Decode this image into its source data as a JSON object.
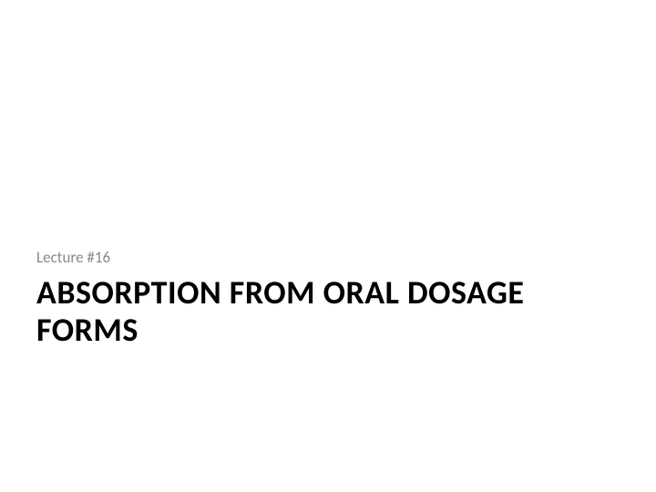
{
  "slide": {
    "subtitle": "Lecture #16",
    "title": "ABSORPTION FROM ORAL DOSAGE FORMS",
    "background_color": "#ffffff",
    "subtitle_color": "#888888",
    "title_color": "#000000",
    "subtitle_fontsize": 17,
    "title_fontsize": 36,
    "title_fontweight": 700,
    "font_family": "Calibri, Arial, sans-serif"
  }
}
